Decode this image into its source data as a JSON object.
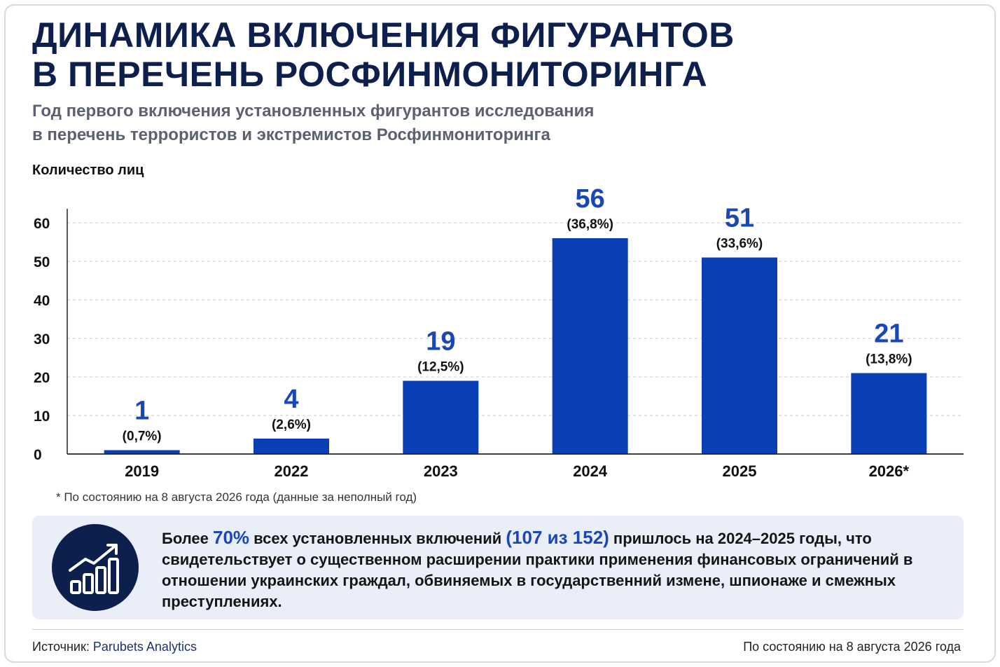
{
  "header": {
    "title_line1": "ДИНАМИКА ВКЛЮЧЕНИЯ ФИГУРАНТОВ",
    "title_line2": "В ПЕРЕЧЕНЬ РОСФИНМОНИТОРИНГА",
    "subtitle_line1": "Год первого включения установленных фигурантов исследования",
    "subtitle_line2": "в перечень террористов и экстремистов Росфинмониторинга"
  },
  "chart_data": {
    "type": "bar",
    "ylabel": "Количество лиц",
    "xlabel": "",
    "ylim": [
      0,
      60
    ],
    "yticks": [
      0,
      10,
      20,
      30,
      40,
      50,
      60
    ],
    "grid": "horizontal dashed",
    "categories": [
      "2019",
      "2022",
      "2023",
      "2024",
      "2025",
      "2026*"
    ],
    "values": [
      1,
      4,
      19,
      56,
      51,
      21
    ],
    "value_labels": [
      "1",
      "4",
      "19",
      "56",
      "51",
      "21"
    ],
    "percent_labels": [
      "(0,7%)",
      "(2,6%)",
      "(12,5%)",
      "(36,8%)",
      "(33,6%)",
      "(13,8%)"
    ],
    "bar_color": "#0a3fb3",
    "label_color": "#1946b8"
  },
  "footnote": "* По состоянию на 8 августа 2026 года (данные за неполный год)",
  "callout": {
    "icon": "growth-chart-icon",
    "t1": "Более ",
    "h1": "70%",
    "t2": " всех установленных включений ",
    "h2": "(107 из 152)",
    "t3": " пришлось на 2024–2025 годы, что свидетельствует о существенном расширении практики применения финансовых ограничений в отношении украинских граждал, обвиняемых в государственний измене, шпионаже и смежных преступлениях."
  },
  "footer": {
    "source_label": "Источник: ",
    "source_name": "Parubets Analytics",
    "as_of": "По состоянию на 8 августа 2026 года"
  }
}
